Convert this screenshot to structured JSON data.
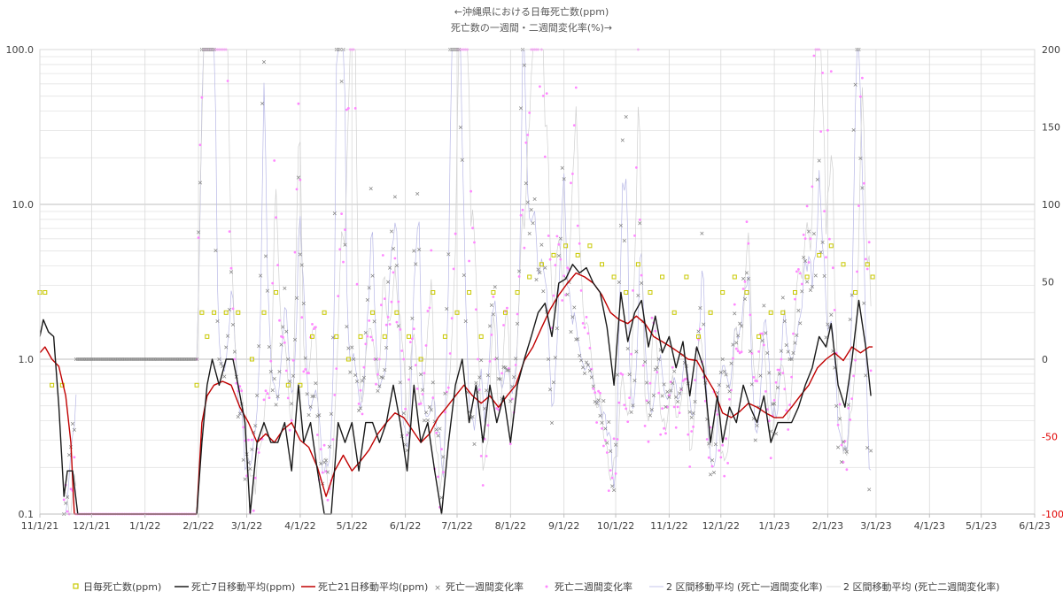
{
  "chart_data": {
    "type": "line",
    "title_line1": "←沖縄県における日毎死亡数(ppm)",
    "title_line2": "死亡数の一週間・二週間変化率(%)→",
    "y_left": {
      "scale": "log",
      "ylim": [
        0.1,
        100
      ],
      "ticks": [
        "100.0",
        "10.0",
        "1.0",
        "0.1"
      ]
    },
    "y_right": {
      "scale": "linear",
      "ylim": [
        -100,
        200
      ],
      "ticks": [
        "200",
        "150",
        "100",
        "50",
        "0",
        "-50",
        "-100"
      ]
    },
    "x_ticks": [
      "11/1/21",
      "12/1/21",
      "1/1/22",
      "2/1/22",
      "3/1/22",
      "4/1/22",
      "5/1/22",
      "6/1/22",
      "7/1/22",
      "8/1/22",
      "9/1/22",
      "10/1/22",
      "11/1/22",
      "12/1/22",
      "1/1/23",
      "2/1/23",
      "3/1/23",
      "4/1/23",
      "5/1/23",
      "6/1/23"
    ],
    "grid": true,
    "legend_position": "bottom",
    "colors": {
      "daily": "#c8c800",
      "ma7": "#1a1a1a",
      "ma21": "#c00000",
      "wk1": "#808080",
      "wk2": "#ff88ff",
      "ma_wk1": "#b8b8e6",
      "ma_wk2": "#d0d0d0"
    },
    "series": [
      {
        "name": "日毎死亡数(ppm)",
        "keypoints": [
          [
            "11/1/21",
            2.7
          ],
          [
            "11/4/21",
            2.7
          ],
          [
            "11/8/21",
            0.68
          ],
          [
            "11/14/21",
            0.68
          ],
          [
            "11/16/21",
            0.1
          ],
          [
            "1/31/22",
            0.68
          ],
          [
            "2/3/22",
            2.0
          ],
          [
            "2/6/22",
            1.4
          ],
          [
            "2/10/22",
            2.0
          ],
          [
            "2/17/22",
            2.0
          ],
          [
            "2/24/22",
            2.0
          ],
          [
            "3/4/22",
            1.0
          ],
          [
            "3/11/22",
            2.0
          ],
          [
            "3/18/22",
            2.7
          ],
          [
            "3/25/22",
            0.68
          ],
          [
            "4/1/22",
            0.68
          ],
          [
            "4/8/22",
            1.4
          ],
          [
            "4/15/22",
            2.0
          ],
          [
            "4/22/22",
            1.4
          ],
          [
            "4/29/22",
            1.0
          ],
          [
            "5/6/22",
            1.4
          ],
          [
            "5/13/22",
            2.0
          ],
          [
            "5/20/22",
            1.4
          ],
          [
            "5/27/22",
            2.0
          ],
          [
            "6/3/22",
            1.4
          ],
          [
            "6/10/22",
            1.0
          ],
          [
            "6/17/22",
            2.7
          ],
          [
            "6/24/22",
            1.4
          ],
          [
            "7/1/22",
            2.0
          ],
          [
            "7/8/22",
            2.7
          ],
          [
            "7/15/22",
            1.4
          ],
          [
            "7/22/22",
            2.7
          ],
          [
            "7/29/22",
            2.0
          ],
          [
            "8/5/22",
            2.7
          ],
          [
            "8/12/22",
            3.4
          ],
          [
            "8/19/22",
            4.1
          ],
          [
            "8/26/22",
            4.7
          ],
          [
            "9/2/22",
            5.4
          ],
          [
            "9/9/22",
            4.7
          ],
          [
            "9/16/22",
            5.4
          ],
          [
            "9/23/22",
            4.1
          ],
          [
            "9/30/22",
            3.4
          ],
          [
            "10/7/22",
            2.7
          ],
          [
            "10/14/22",
            4.1
          ],
          [
            "10/21/22",
            2.7
          ],
          [
            "10/28/22",
            3.4
          ],
          [
            "11/4/22",
            2.0
          ],
          [
            "11/11/22",
            3.4
          ],
          [
            "11/18/22",
            1.4
          ],
          [
            "11/25/22",
            2.0
          ],
          [
            "12/2/22",
            2.7
          ],
          [
            "12/9/22",
            3.4
          ],
          [
            "12/16/22",
            2.7
          ],
          [
            "12/23/22",
            1.4
          ],
          [
            "12/30/22",
            2.0
          ],
          [
            "1/6/23",
            2.0
          ],
          [
            "1/13/23",
            2.7
          ],
          [
            "1/20/23",
            3.4
          ],
          [
            "1/27/23",
            4.7
          ],
          [
            "2/3/23",
            5.4
          ],
          [
            "2/10/23",
            4.1
          ],
          [
            "2/17/23",
            2.7
          ],
          [
            "2/24/23",
            4.1
          ],
          [
            "2/27/23",
            3.4
          ]
        ]
      },
      {
        "name": "死亡7日移動平均(ppm)",
        "keypoints": [
          [
            "11/1/21",
            1.4
          ],
          [
            "11/3/21",
            1.8
          ],
          [
            "11/6/21",
            1.5
          ],
          [
            "11/9/21",
            1.4
          ],
          [
            "11/12/21",
            0.5
          ],
          [
            "11/15/21",
            0.13
          ],
          [
            "11/17/21",
            0.19
          ],
          [
            "11/20/21",
            0.19
          ],
          [
            "11/23/21",
            0.1
          ],
          [
            "1/31/22",
            0.1
          ],
          [
            "2/3/22",
            0.29
          ],
          [
            "2/6/22",
            0.68
          ],
          [
            "2/9/22",
            1.0
          ],
          [
            "2/13/22",
            0.68
          ],
          [
            "2/17/22",
            1.0
          ],
          [
            "2/21/22",
            1.0
          ],
          [
            "2/24/22",
            0.68
          ],
          [
            "2/28/22",
            0.39
          ],
          [
            "3/3/22",
            0.1
          ],
          [
            "3/7/22",
            0.29
          ],
          [
            "3/11/22",
            0.39
          ],
          [
            "3/15/22",
            0.29
          ],
          [
            "3/19/22",
            0.29
          ],
          [
            "3/23/22",
            0.39
          ],
          [
            "3/27/22",
            0.19
          ],
          [
            "3/31/22",
            0.68
          ],
          [
            "4/3/22",
            0.29
          ],
          [
            "4/7/22",
            0.39
          ],
          [
            "4/11/22",
            0.19
          ],
          [
            "4/15/22",
            0.1
          ],
          [
            "4/19/22",
            0.1
          ],
          [
            "4/23/22",
            0.39
          ],
          [
            "4/27/22",
            0.29
          ],
          [
            "5/1/22",
            0.39
          ],
          [
            "5/5/22",
            0.19
          ],
          [
            "5/9/22",
            0.39
          ],
          [
            "5/13/22",
            0.39
          ],
          [
            "5/17/22",
            0.29
          ],
          [
            "5/21/22",
            0.39
          ],
          [
            "5/25/22",
            0.68
          ],
          [
            "5/29/22",
            0.39
          ],
          [
            "6/2/22",
            0.19
          ],
          [
            "6/6/22",
            0.68
          ],
          [
            "6/10/22",
            0.29
          ],
          [
            "6/14/22",
            0.39
          ],
          [
            "6/18/22",
            0.19
          ],
          [
            "6/22/22",
            0.1
          ],
          [
            "6/26/22",
            0.29
          ],
          [
            "6/30/22",
            0.68
          ],
          [
            "7/4/22",
            1.0
          ],
          [
            "7/8/22",
            0.39
          ],
          [
            "7/12/22",
            0.68
          ],
          [
            "7/16/22",
            0.29
          ],
          [
            "7/20/22",
            0.68
          ],
          [
            "7/24/22",
            0.39
          ],
          [
            "7/28/22",
            0.58
          ],
          [
            "8/1/22",
            0.29
          ],
          [
            "8/5/22",
            0.68
          ],
          [
            "8/9/22",
            1.0
          ],
          [
            "8/13/22",
            1.4
          ],
          [
            "8/17/22",
            2.0
          ],
          [
            "8/21/22",
            2.3
          ],
          [
            "8/25/22",
            1.4
          ],
          [
            "8/29/22",
            3.1
          ],
          [
            "9/2/22",
            3.3
          ],
          [
            "9/6/22",
            4.1
          ],
          [
            "9/10/22",
            3.6
          ],
          [
            "9/14/22",
            3.9
          ],
          [
            "9/18/22",
            3.1
          ],
          [
            "9/22/22",
            2.7
          ],
          [
            "9/26/22",
            1.6
          ],
          [
            "9/30/22",
            0.68
          ],
          [
            "10/4/22",
            2.7
          ],
          [
            "10/8/22",
            1.3
          ],
          [
            "10/12/22",
            2.0
          ],
          [
            "10/16/22",
            2.4
          ],
          [
            "10/20/22",
            1.2
          ],
          [
            "10/24/22",
            1.9
          ],
          [
            "10/28/22",
            1.1
          ],
          [
            "11/1/22",
            1.4
          ],
          [
            "11/5/22",
            0.88
          ],
          [
            "11/9/22",
            1.3
          ],
          [
            "11/13/22",
            0.58
          ],
          [
            "11/17/22",
            1.2
          ],
          [
            "11/21/22",
            0.88
          ],
          [
            "11/25/22",
            0.29
          ],
          [
            "11/29/22",
            0.58
          ],
          [
            "12/2/22",
            0.29
          ],
          [
            "12/6/22",
            0.49
          ],
          [
            "12/10/22",
            0.39
          ],
          [
            "12/14/22",
            0.68
          ],
          [
            "12/18/22",
            0.49
          ],
          [
            "12/22/22",
            0.39
          ],
          [
            "12/26/22",
            0.58
          ],
          [
            "12/30/22",
            0.29
          ],
          [
            "1/3/23",
            0.39
          ],
          [
            "1/7/23",
            0.39
          ],
          [
            "1/11/23",
            0.39
          ],
          [
            "1/15/23",
            0.49
          ],
          [
            "1/19/23",
            0.68
          ],
          [
            "1/23/23",
            0.88
          ],
          [
            "1/27/23",
            1.4
          ],
          [
            "1/31/23",
            1.2
          ],
          [
            "2/3/23",
            1.7
          ],
          [
            "2/7/23",
            0.68
          ],
          [
            "2/11/23",
            0.49
          ],
          [
            "2/15/23",
            0.98
          ],
          [
            "2/19/23",
            2.4
          ],
          [
            "2/23/23",
            1.2
          ],
          [
            "2/26/23",
            0.58
          ]
        ]
      },
      {
        "name": "死亡21日移動平均(ppm)",
        "keypoints": [
          [
            "11/1/21",
            1.1
          ],
          [
            "11/4/21",
            1.2
          ],
          [
            "11/8/21",
            1.0
          ],
          [
            "11/12/21",
            0.9
          ],
          [
            "11/16/21",
            0.58
          ],
          [
            "11/19/21",
            0.29
          ],
          [
            "11/21/21",
            0.1
          ],
          [
            "1/31/22",
            0.1
          ],
          [
            "2/3/22",
            0.39
          ],
          [
            "2/6/22",
            0.58
          ],
          [
            "2/10/22",
            0.68
          ],
          [
            "2/15/22",
            0.72
          ],
          [
            "2/20/22",
            0.68
          ],
          [
            "2/25/22",
            0.49
          ],
          [
            "3/2/22",
            0.39
          ],
          [
            "3/7/22",
            0.29
          ],
          [
            "3/12/22",
            0.33
          ],
          [
            "3/17/22",
            0.29
          ],
          [
            "3/22/22",
            0.35
          ],
          [
            "3/27/22",
            0.39
          ],
          [
            "4/1/22",
            0.3
          ],
          [
            "4/6/22",
            0.27
          ],
          [
            "4/11/22",
            0.2
          ],
          [
            "4/16/22",
            0.13
          ],
          [
            "4/21/22",
            0.19
          ],
          [
            "4/26/22",
            0.24
          ],
          [
            "5/1/22",
            0.19
          ],
          [
            "5/6/22",
            0.22
          ],
          [
            "5/11/22",
            0.26
          ],
          [
            "5/16/22",
            0.33
          ],
          [
            "5/21/22",
            0.39
          ],
          [
            "5/26/22",
            0.45
          ],
          [
            "5/31/22",
            0.42
          ],
          [
            "6/5/22",
            0.35
          ],
          [
            "6/10/22",
            0.29
          ],
          [
            "6/15/22",
            0.33
          ],
          [
            "6/20/22",
            0.42
          ],
          [
            "6/25/22",
            0.49
          ],
          [
            "6/30/22",
            0.58
          ],
          [
            "7/5/22",
            0.68
          ],
          [
            "7/10/22",
            0.58
          ],
          [
            "7/15/22",
            0.52
          ],
          [
            "7/20/22",
            0.58
          ],
          [
            "7/25/22",
            0.49
          ],
          [
            "7/30/22",
            0.58
          ],
          [
            "8/4/22",
            0.68
          ],
          [
            "8/9/22",
            0.98
          ],
          [
            "8/14/22",
            1.2
          ],
          [
            "8/19/22",
            1.6
          ],
          [
            "8/24/22",
            2.1
          ],
          [
            "8/29/22",
            2.6
          ],
          [
            "9/3/22",
            3.1
          ],
          [
            "9/8/22",
            3.6
          ],
          [
            "9/13/22",
            3.4
          ],
          [
            "9/18/22",
            3.1
          ],
          [
            "9/23/22",
            2.6
          ],
          [
            "9/28/22",
            2.0
          ],
          [
            "10/3/22",
            1.8
          ],
          [
            "10/8/22",
            1.7
          ],
          [
            "10/13/22",
            1.9
          ],
          [
            "10/18/22",
            1.7
          ],
          [
            "10/23/22",
            1.4
          ],
          [
            "10/28/22",
            1.3
          ],
          [
            "11/2/22",
            1.2
          ],
          [
            "11/7/22",
            1.1
          ],
          [
            "11/12/22",
            1.0
          ],
          [
            "11/17/22",
            0.98
          ],
          [
            "11/22/22",
            0.78
          ],
          [
            "11/27/22",
            0.63
          ],
          [
            "12/2/22",
            0.45
          ],
          [
            "12/7/22",
            0.42
          ],
          [
            "12/12/22",
            0.46
          ],
          [
            "12/17/22",
            0.52
          ],
          [
            "12/22/22",
            0.49
          ],
          [
            "12/27/22",
            0.45
          ],
          [
            "1/1/23",
            0.42
          ],
          [
            "1/6/23",
            0.42
          ],
          [
            "1/11/23",
            0.49
          ],
          [
            "1/16/23",
            0.58
          ],
          [
            "1/21/23",
            0.68
          ],
          [
            "1/26/23",
            0.88
          ],
          [
            "1/31/23",
            1.0
          ],
          [
            "2/5/23",
            1.1
          ],
          [
            "2/10/23",
            0.98
          ],
          [
            "2/15/23",
            1.2
          ],
          [
            "2/20/23",
            1.1
          ],
          [
            "2/25/23",
            1.2
          ],
          [
            "2/27/23",
            1.2
          ]
        ]
      },
      {
        "name": "死亡一週間変化率",
        "kind": "markers-x"
      },
      {
        "name": "死亡二週間変化率",
        "kind": "markers-dot"
      },
      {
        "name": "2 区間移動平均 (死亡一週間変化率)",
        "kind": "thin-line"
      },
      {
        "name": "2 区間移動平均 (死亡二週間変化率)",
        "kind": "thin-line"
      }
    ]
  }
}
